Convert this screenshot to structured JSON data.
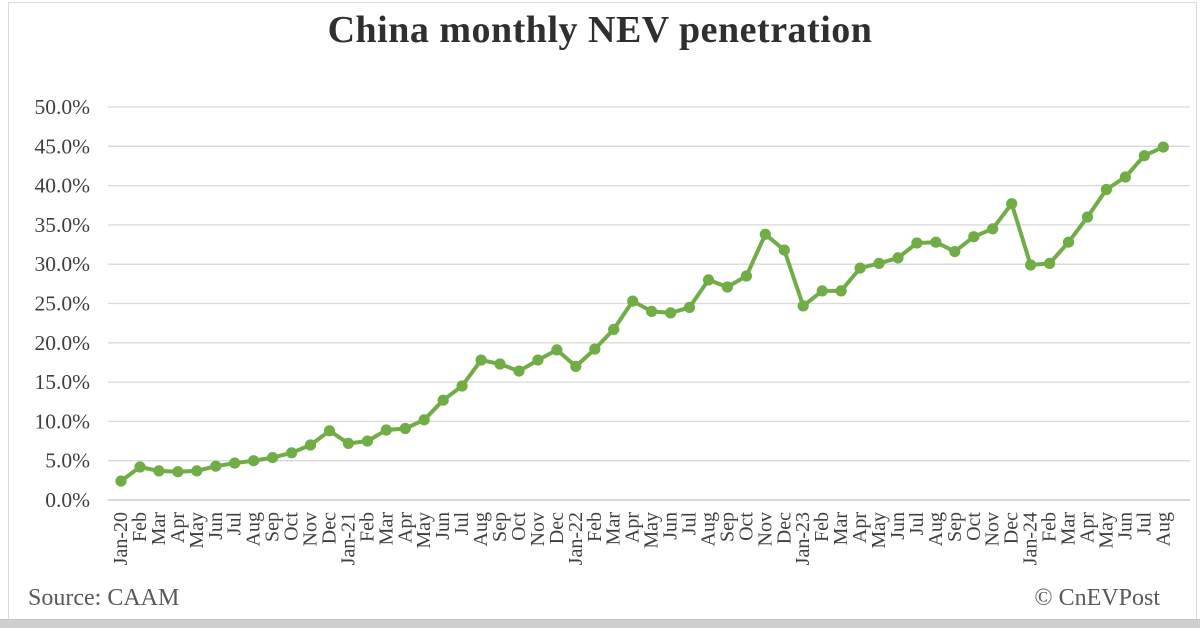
{
  "title": "China monthly NEV penetration",
  "footer": {
    "source": "Source: CAAM",
    "credit": "© CnEVPost"
  },
  "colors": {
    "background": "#FFFFFF",
    "line": "#70AD47",
    "marker": "#70AD47",
    "grid": "#D9D9D9",
    "baseline": "#C0C0C0",
    "axis_text": "#3F3F3F",
    "title_text": "#2F2F2F",
    "footer_text": "#595959",
    "bottom_bar": "#CFCFCF",
    "frame_border": "#DADADA"
  },
  "chart_data": {
    "type": "line",
    "title": "China monthly NEV penetration",
    "series_name": "NEV penetration",
    "xlabel": "",
    "ylabel": "",
    "ylim": [
      0,
      50
    ],
    "y_ticks": [
      0,
      5,
      10,
      15,
      20,
      25,
      30,
      35,
      40,
      45,
      50
    ],
    "y_tick_labels": [
      "0.0%",
      "5.0%",
      "10.0%",
      "15.0%",
      "20.0%",
      "25.0%",
      "30.0%",
      "35.0%",
      "40.0%",
      "45.0%",
      "50.0%"
    ],
    "grid": true,
    "legend": "none",
    "marker": "circle",
    "categories": [
      "Jan-20",
      "Feb",
      "Mar",
      "Apr",
      "May",
      "Jun",
      "Jul",
      "Aug",
      "Sep",
      "Oct",
      "Nov",
      "Dec",
      "Jan-21",
      "Feb",
      "Mar",
      "Apr",
      "May",
      "Jun",
      "Jul",
      "Aug",
      "Sep",
      "Oct",
      "Nov",
      "Dec",
      "Jan-22",
      "Feb",
      "Mar",
      "Apr",
      "May",
      "Jun",
      "Jul",
      "Aug",
      "Sep",
      "Oct",
      "Nov",
      "Dec",
      "Jan-23",
      "Feb",
      "Mar",
      "Apr",
      "May",
      "Jun",
      "Jul",
      "Aug",
      "Sep",
      "Oct",
      "Nov",
      "Dec",
      "Jan-24",
      "Feb",
      "Mar",
      "Apr",
      "May",
      "Jun",
      "Jul",
      "Aug"
    ],
    "values": [
      2.4,
      4.2,
      3.7,
      3.6,
      3.7,
      4.3,
      4.7,
      5.0,
      5.4,
      6.0,
      7.0,
      8.8,
      7.2,
      7.5,
      8.9,
      9.1,
      10.2,
      12.7,
      14.5,
      17.8,
      17.3,
      16.4,
      17.8,
      19.1,
      17.0,
      19.2,
      21.7,
      25.3,
      24.0,
      23.8,
      24.5,
      28.0,
      27.1,
      28.5,
      33.8,
      31.8,
      24.7,
      26.6,
      26.6,
      29.5,
      30.1,
      30.8,
      32.7,
      32.8,
      31.6,
      33.5,
      34.5,
      37.7,
      29.9,
      30.1,
      32.8,
      36.0,
      39.5,
      41.1,
      43.8,
      44.9
    ]
  }
}
